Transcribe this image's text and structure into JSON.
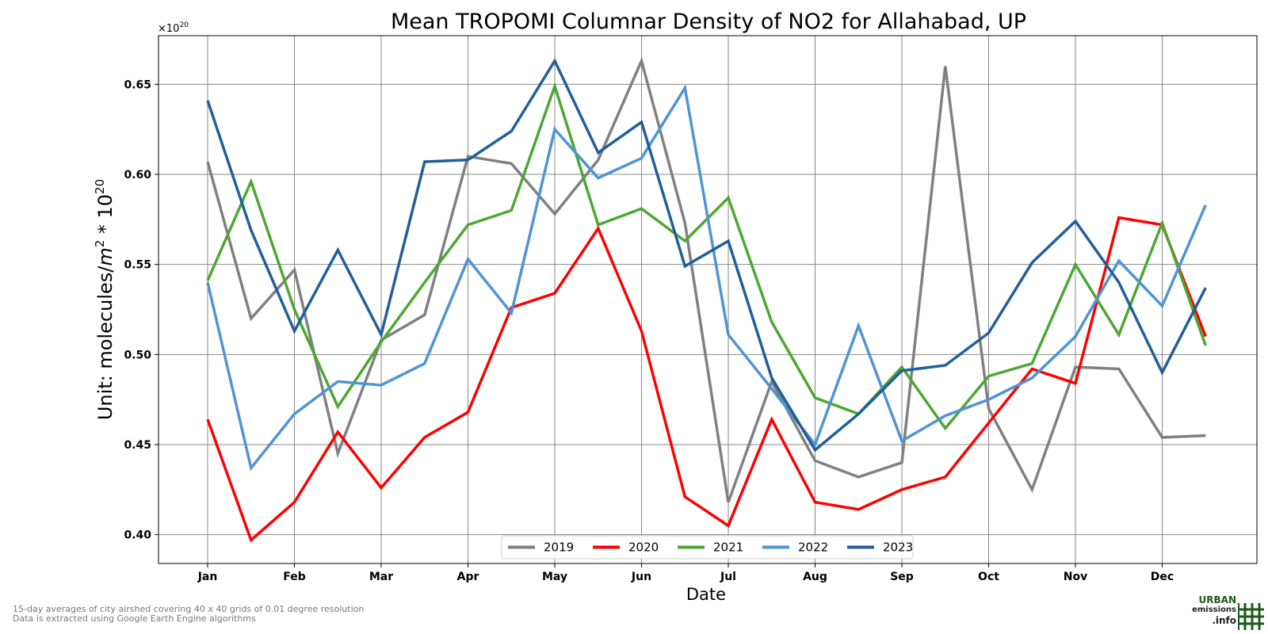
{
  "chart_data": {
    "type": "line",
    "title": "Mean TROPOMI Columnar Density of NO2 for Allahabad, UP",
    "xlabel": "Date",
    "ylabel_prefix": "Unit: molecules/",
    "ylabel_m": "m",
    "ylabel_sup": "2",
    "ylabel_mid": " * 10",
    "ylabel_sup2": "20",
    "multiplier_base": "×10",
    "multiplier_exp": "20",
    "x_tick_labels": [
      "Jan",
      "Feb",
      "Mar",
      "Apr",
      "May",
      "Jun",
      "Jul",
      "Aug",
      "Sep",
      "Oct",
      "Nov",
      "Dec"
    ],
    "y_ticks": [
      "0.40",
      "0.45",
      "0.50",
      "0.55",
      "0.60",
      "0.65"
    ],
    "ylim": [
      0.384,
      0.677
    ],
    "x_points": [
      "Jan 1",
      "Jan 16",
      "Feb 1",
      "Feb 16",
      "Mar 1",
      "Mar 16",
      "Apr 1",
      "Apr 16",
      "May 1",
      "May 16",
      "Jun 1",
      "Jun 16",
      "Jul 1",
      "Jul 16",
      "Aug 1",
      "Aug 16",
      "Sep 1",
      "Sep 16",
      "Oct 1",
      "Oct 16",
      "Nov 1",
      "Nov 16",
      "Dec 1",
      "Dec 16"
    ],
    "grid": true,
    "legend_position": "bottom-center",
    "series": [
      {
        "name": "2019",
        "color": "#808080",
        "values": [
          0.607,
          0.52,
          0.547,
          0.445,
          0.508,
          0.522,
          0.61,
          0.606,
          0.578,
          0.608,
          0.663,
          0.573,
          0.418,
          0.485,
          0.441,
          0.432,
          0.44,
          0.66,
          0.47,
          0.425,
          0.493,
          0.492,
          0.454,
          0.455
        ]
      },
      {
        "name": "2020",
        "color": "#ff0000",
        "values": [
          0.464,
          0.397,
          0.418,
          0.457,
          0.426,
          0.454,
          0.468,
          0.526,
          0.534,
          0.57,
          0.513,
          0.421,
          0.405,
          0.464,
          0.418,
          0.414,
          0.425,
          0.432,
          0.462,
          0.492,
          0.484,
          0.576,
          0.572,
          0.51
        ]
      },
      {
        "name": "2021",
        "color": "#4ca832",
        "values": [
          0.541,
          0.596,
          0.525,
          0.471,
          0.507,
          0.54,
          0.572,
          0.58,
          0.649,
          0.572,
          0.581,
          0.563,
          0.587,
          0.518,
          0.476,
          0.467,
          0.493,
          0.459,
          0.488,
          0.495,
          0.55,
          0.511,
          0.573,
          0.505
        ]
      },
      {
        "name": "2022",
        "color": "#4f94d4",
        "values": [
          0.54,
          0.437,
          0.467,
          0.485,
          0.483,
          0.495,
          0.553,
          0.523,
          0.625,
          0.598,
          0.609,
          0.648,
          0.511,
          0.481,
          0.45,
          0.516,
          0.452,
          0.466,
          0.475,
          0.487,
          0.51,
          0.552,
          0.527,
          0.583
        ]
      },
      {
        "name": "2023",
        "color": "#215f9a",
        "values": [
          0.641,
          0.569,
          0.513,
          0.558,
          0.511,
          0.607,
          0.608,
          0.624,
          0.663,
          0.612,
          0.629,
          0.549,
          0.563,
          0.487,
          0.447,
          0.467,
          0.491,
          0.494,
          0.512,
          0.551,
          0.574,
          0.54,
          0.49,
          0.537
        ]
      }
    ]
  },
  "footnote_line1": "15-day averages of city airshed covering 40 x 40 grids of 0.01 degree resolution",
  "footnote_line2": "Data is extracted using Google Earth Engine algorithms",
  "logo": {
    "line1": "URBAN",
    "line2": "emissions",
    "line3": ".info",
    "color": "#1c5a1c"
  }
}
